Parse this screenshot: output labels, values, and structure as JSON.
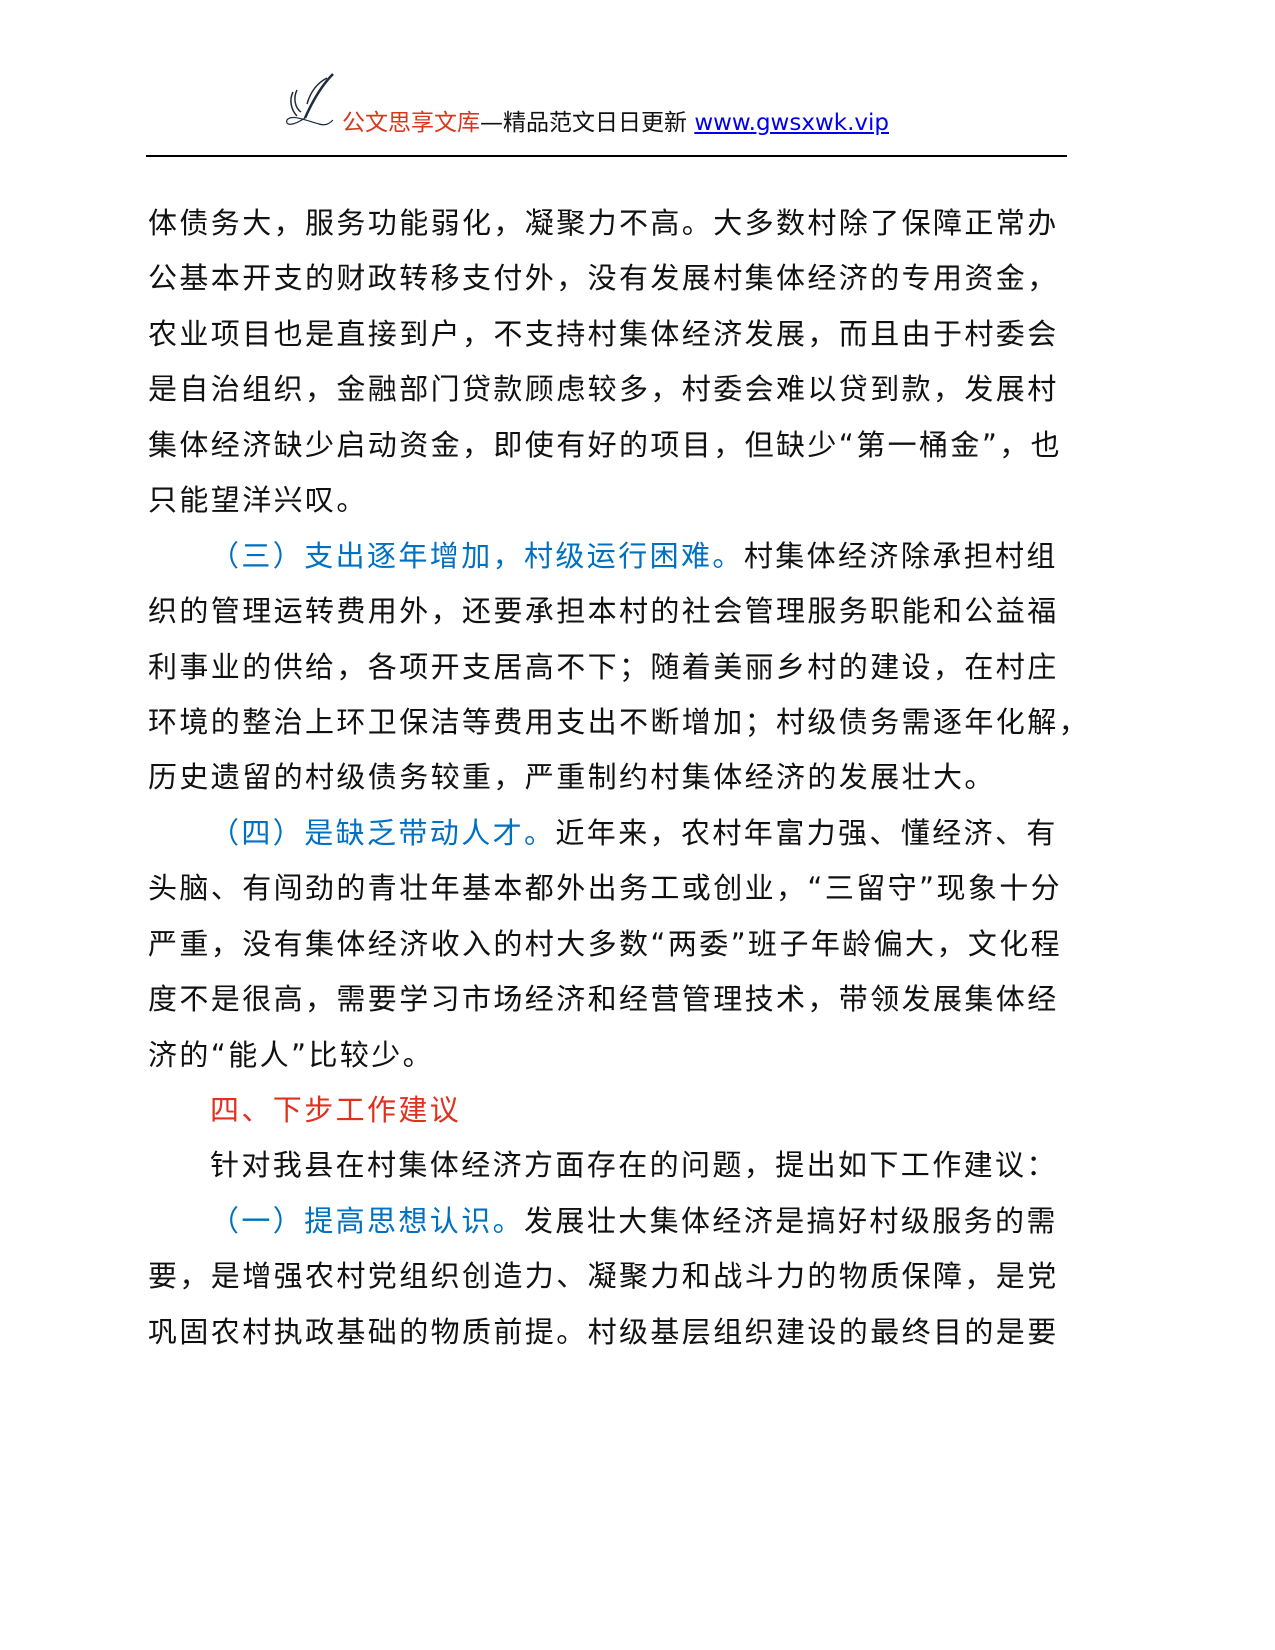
{
  "header": {
    "brand": "公文思享文库",
    "tagline": "—精品范文日日更新 ",
    "url": "www.gwsxwk.vip"
  },
  "lines": [
    {
      "indent": false,
      "segs": [
        {
          "t": "体债务大，服务功能弱化，凝聚力不高。大多数村除了保障正常办"
        }
      ]
    },
    {
      "indent": false,
      "segs": [
        {
          "t": "公基本开支的财政转移支付外，没有发展村集体经济的专用资金，"
        }
      ]
    },
    {
      "indent": false,
      "segs": [
        {
          "t": "农业项目也是直接到户，不支持村集体经济发展，而且由于村委会"
        }
      ]
    },
    {
      "indent": false,
      "segs": [
        {
          "t": "是自治组织，金融部门贷款顾虑较多，村委会难以贷到款，发展村"
        }
      ]
    },
    {
      "indent": false,
      "segs": [
        {
          "t": "集体经济缺少启动资金，即使有好的项目，但缺少“第一桶金”，也"
        }
      ]
    },
    {
      "indent": false,
      "segs": [
        {
          "t": "只能望洋兴叹。"
        }
      ]
    },
    {
      "indent": true,
      "segs": [
        {
          "t": "（三）支出逐年增加，村级运行困难。",
          "c": "blue"
        },
        {
          "t": "村集体经济除承担村组"
        }
      ]
    },
    {
      "indent": false,
      "segs": [
        {
          "t": "织的管理运转费用外，还要承担本村的社会管理服务职能和公益福"
        }
      ]
    },
    {
      "indent": false,
      "segs": [
        {
          "t": "利事业的供给，各项开支居高不下；随着美丽乡村的建设，在村庄"
        }
      ]
    },
    {
      "indent": false,
      "segs": [
        {
          "t": "环境的整治上环卫保洁等费用支出不断增加；村级债务需逐年化解，"
        }
      ]
    },
    {
      "indent": false,
      "segs": [
        {
          "t": "历史遗留的村级债务较重，严重制约村集体经济的发展壮大。"
        }
      ]
    },
    {
      "indent": true,
      "segs": [
        {
          "t": "（四）是缺乏带动人才。",
          "c": "blue"
        },
        {
          "t": "近年来，农村年富力强、懂经济、有"
        }
      ]
    },
    {
      "indent": false,
      "segs": [
        {
          "t": "头脑、有闯劲的青壮年基本都外出务工或创业，“三留守”现象十分"
        }
      ]
    },
    {
      "indent": false,
      "segs": [
        {
          "t": "严重，没有集体经济收入的村大多数“两委”班子年龄偏大，文化程"
        }
      ]
    },
    {
      "indent": false,
      "segs": [
        {
          "t": "度不是很高，需要学习市场经济和经营管理技术，带领发展集体经"
        }
      ]
    },
    {
      "indent": false,
      "segs": [
        {
          "t": "济的“能人”比较少。"
        }
      ]
    },
    {
      "indent": true,
      "segs": [
        {
          "t": "四、下步工作建议",
          "c": "hred"
        }
      ]
    },
    {
      "indent": true,
      "segs": [
        {
          "t": "针对我县在村集体经济方面存在的问题，提出如下工作建议："
        }
      ]
    },
    {
      "indent": true,
      "segs": [
        {
          "t": "（一）提高思想认识。",
          "c": "blue"
        },
        {
          "t": "发展壮大集体经济是搞好村级服务的需"
        }
      ]
    },
    {
      "indent": false,
      "segs": [
        {
          "t": "要，是增强农村党组织创造力、凝聚力和战斗力的物质保障，是党"
        }
      ]
    },
    {
      "indent": false,
      "segs": [
        {
          "t": "巩固农村执政基础的物质前提。村级基层组织建设的最终目的是要"
        }
      ]
    }
  ]
}
